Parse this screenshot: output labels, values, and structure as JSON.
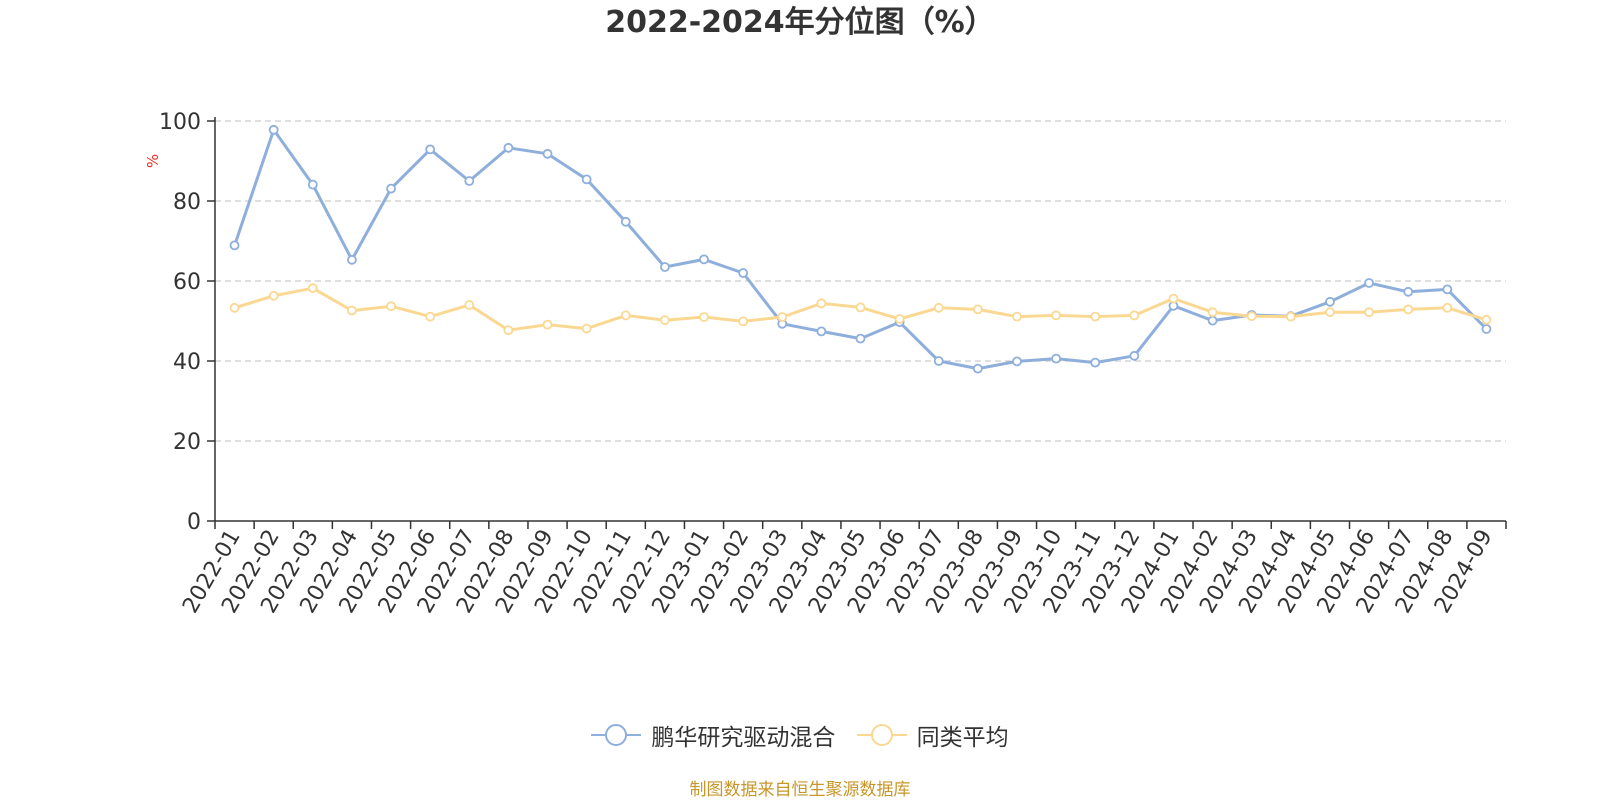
{
  "title": "2022-2024年分位图（%）",
  "source": "制图数据来自恒生聚源数据库",
  "colors": {
    "series1": "#8eaedc",
    "series2": "#fad892",
    "ylabel": "#e8302c",
    "axis": "#333333",
    "grid": "#cccccc",
    "source": "#c8962a"
  },
  "chart_data": {
    "type": "line",
    "title": "2022-2024年分位图（%）",
    "ylabel": "%",
    "xlabel": "",
    "ylim": [
      0,
      100
    ],
    "yticks": [
      0,
      20,
      40,
      60,
      80,
      100
    ],
    "grid": true,
    "grid_style": "dashed",
    "legend_position": "bottom",
    "categories": [
      "2022-01",
      "2022-02",
      "2022-03",
      "2022-04",
      "2022-05",
      "2022-06",
      "2022-07",
      "2022-08",
      "2022-09",
      "2022-10",
      "2022-11",
      "2022-12",
      "2023-01",
      "2023-02",
      "2023-03",
      "2023-04",
      "2023-05",
      "2023-06",
      "2023-07",
      "2023-08",
      "2023-09",
      "2023-10",
      "2023-11",
      "2023-12",
      "2024-01",
      "2024-02",
      "2024-03",
      "2024-04",
      "2024-05",
      "2024-06",
      "2024-07",
      "2024-08",
      "2024-09"
    ],
    "series": [
      {
        "name": "鹏华研究驱动混合",
        "color": "#8eaedc",
        "values": [
          68.9,
          97.8,
          84.1,
          65.3,
          83.1,
          92.9,
          85.0,
          93.3,
          91.8,
          85.4,
          74.8,
          63.5,
          65.4,
          62.0,
          49.3,
          47.4,
          45.6,
          49.7,
          40.0,
          38.1,
          39.9,
          40.6,
          39.6,
          41.3,
          53.8,
          50.1,
          51.5,
          51.2,
          54.8,
          59.5,
          57.3,
          57.9,
          48.0
        ]
      },
      {
        "name": "同类平均",
        "color": "#fad892",
        "values": [
          53.3,
          56.3,
          58.2,
          52.6,
          53.7,
          51.1,
          54.0,
          47.7,
          49.1,
          48.1,
          51.4,
          50.2,
          51.0,
          49.9,
          51.0,
          54.4,
          53.4,
          50.5,
          53.3,
          52.9,
          51.1,
          51.4,
          51.1,
          51.4,
          55.6,
          52.2,
          51.2,
          51.1,
          52.2,
          52.2,
          52.9,
          53.3,
          50.3
        ]
      }
    ]
  }
}
